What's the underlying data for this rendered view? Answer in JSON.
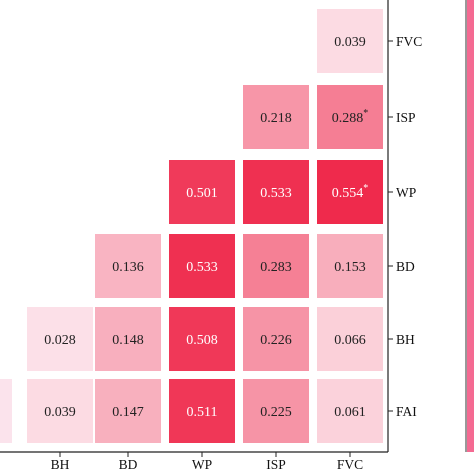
{
  "chart_data": {
    "type": "heatmap",
    "x_categories": [
      "BH",
      "BD",
      "WP",
      "ISP",
      "FVC"
    ],
    "y_categories": [
      "FVC",
      "ISP",
      "WP",
      "BD",
      "BH",
      "FAI"
    ],
    "rows": [
      {
        "label": "FVC",
        "cells": [
          null,
          null,
          null,
          null,
          {
            "value": 0.039,
            "text": "0.039"
          }
        ]
      },
      {
        "label": "ISP",
        "cells": [
          null,
          null,
          null,
          {
            "value": 0.218,
            "text": "0.218"
          },
          {
            "value": 0.288,
            "text": "0.288",
            "sig": "*"
          }
        ]
      },
      {
        "label": "WP",
        "cells": [
          null,
          null,
          {
            "value": 0.501,
            "text": "0.501"
          },
          {
            "value": 0.533,
            "text": "0.533"
          },
          {
            "value": 0.554,
            "text": "0.554",
            "sig": "*"
          }
        ]
      },
      {
        "label": "BD",
        "cells": [
          null,
          {
            "value": 0.136,
            "text": "0.136"
          },
          {
            "value": 0.533,
            "text": "0.533"
          },
          {
            "value": 0.283,
            "text": "0.283"
          },
          {
            "value": 0.153,
            "text": "0.153"
          }
        ]
      },
      {
        "label": "BH",
        "cells": [
          {
            "value": 0.028,
            "text": "0.028"
          },
          {
            "value": 0.148,
            "text": "0.148"
          },
          {
            "value": 0.508,
            "text": "0.508"
          },
          {
            "value": 0.226,
            "text": "0.226"
          },
          {
            "value": 0.066,
            "text": "0.066"
          }
        ]
      },
      {
        "label": "FAI",
        "cells": [
          {
            "value": 0.039,
            "text": "0.039"
          },
          {
            "value": 0.147,
            "text": "0.147"
          },
          {
            "value": 0.511,
            "text": "0.511"
          },
          {
            "value": 0.225,
            "text": "0.225"
          },
          {
            "value": 0.061,
            "text": "0.061"
          }
        ]
      }
    ],
    "value_range": [
      0,
      0.6
    ],
    "colors": {
      "low": "#fdf0f5",
      "high": "#ee1c40",
      "text_dark": "#222222",
      "text_light": "#ffffff"
    },
    "grid": false,
    "legend": "colorbar, right (cropped)"
  }
}
